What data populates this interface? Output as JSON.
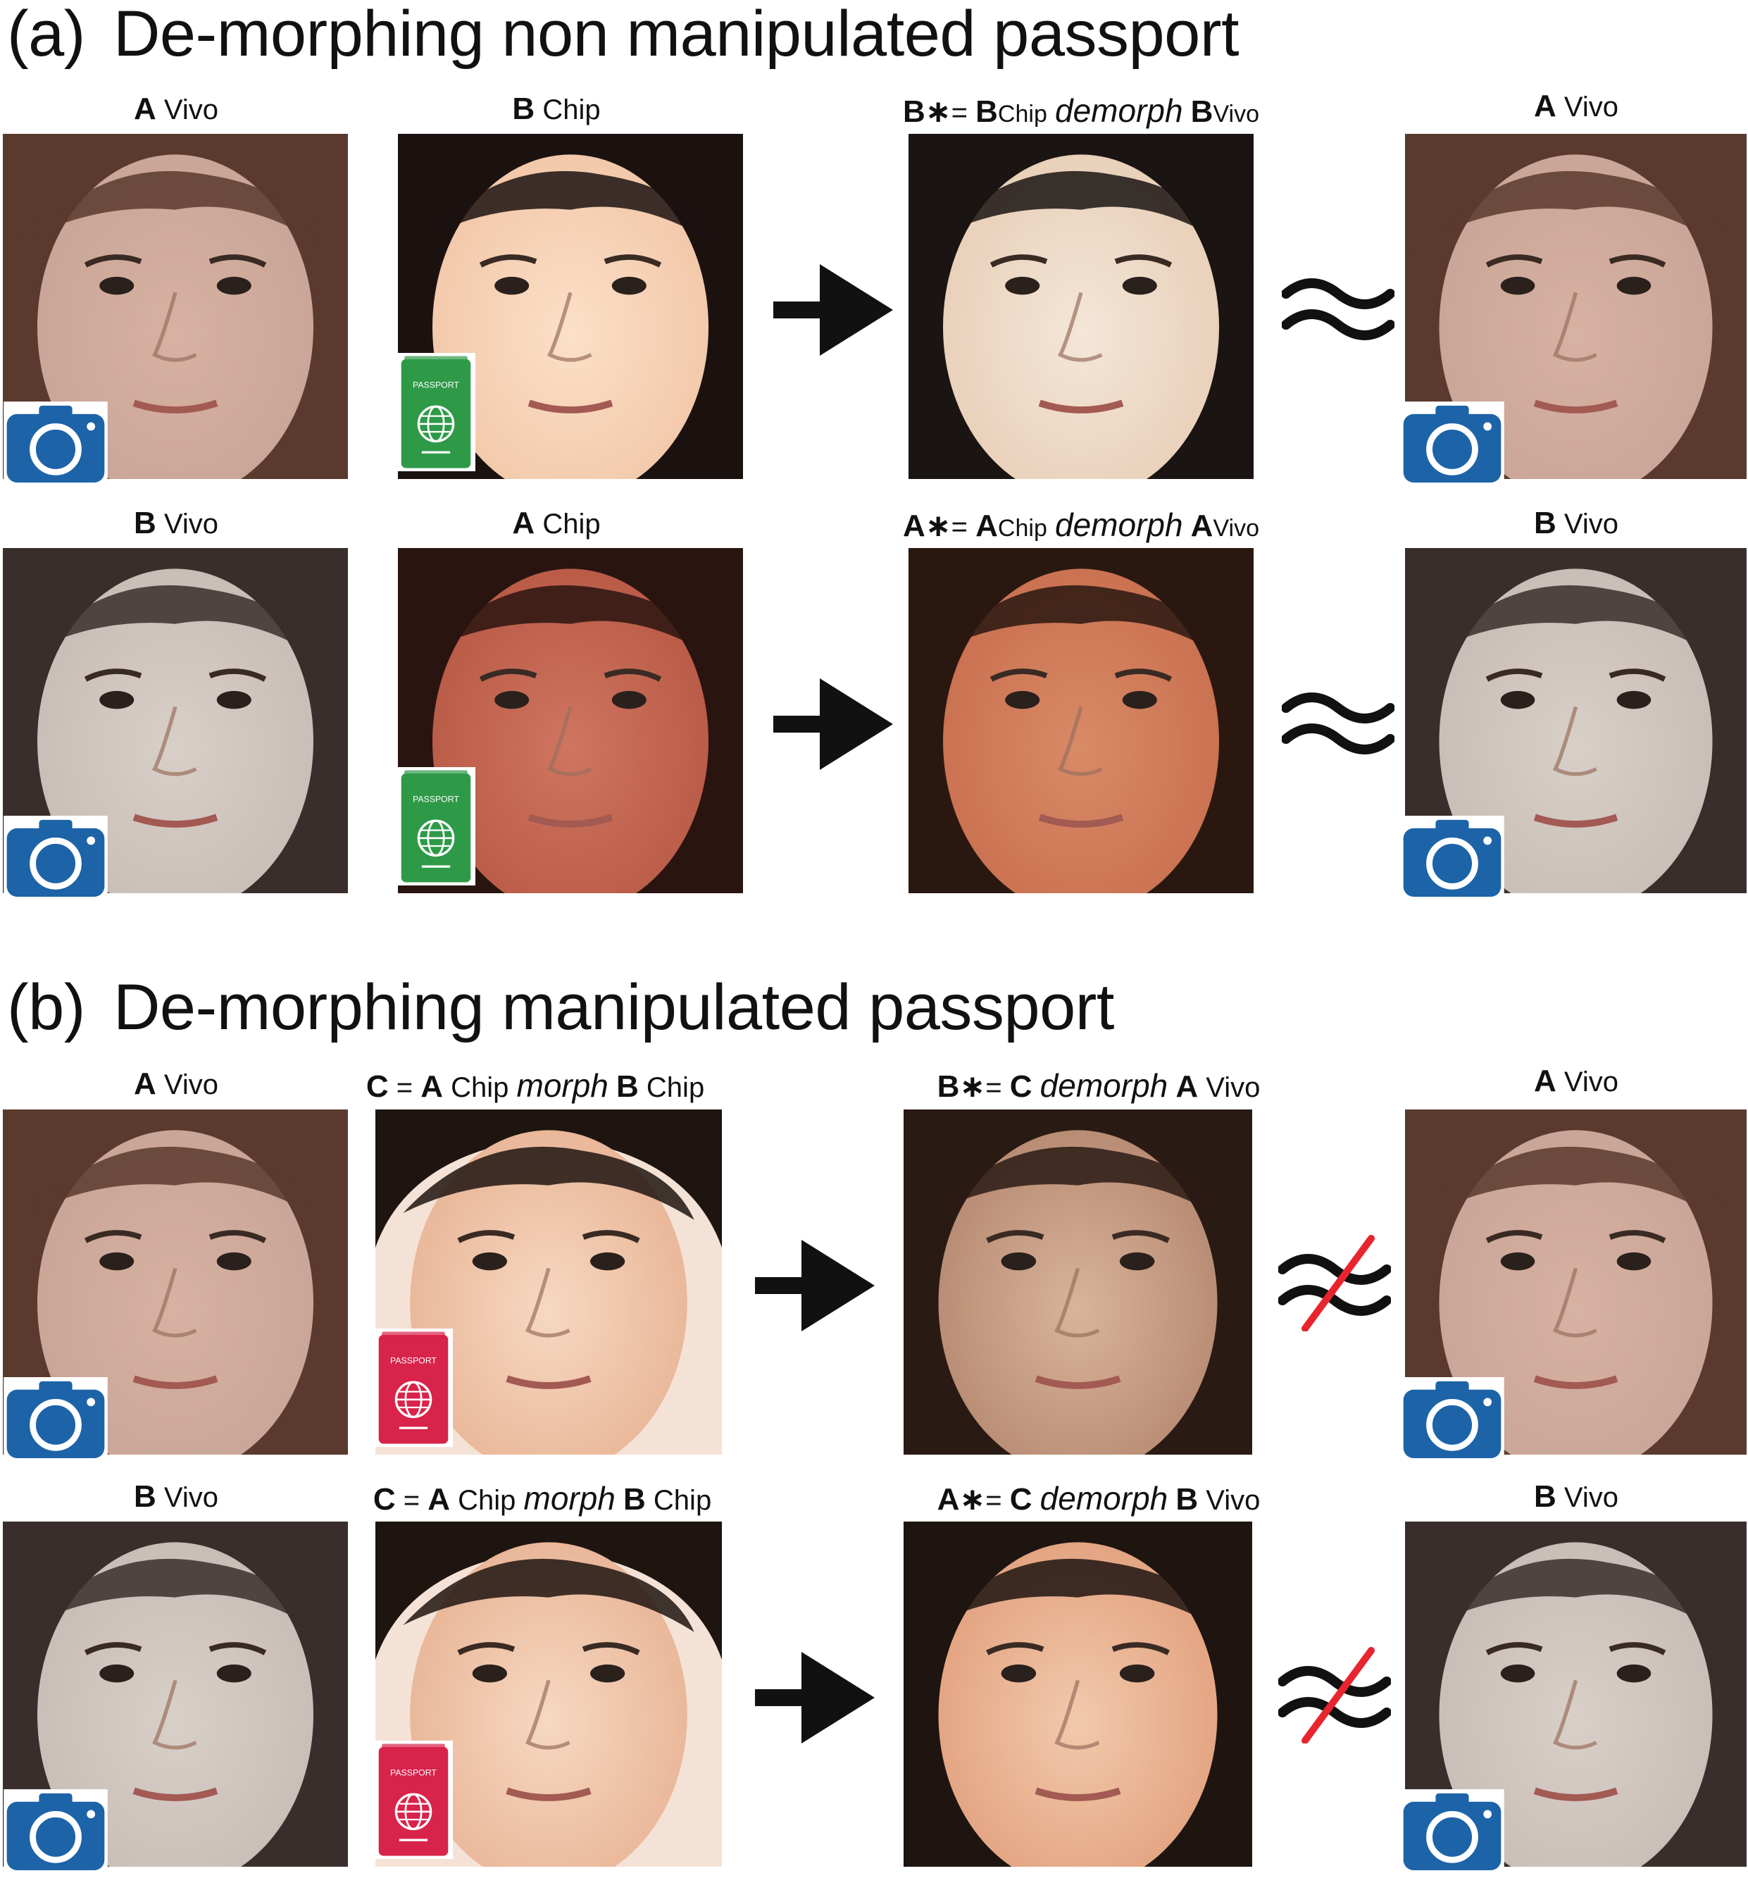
{
  "sections": [
    {
      "tag": "(a)",
      "title": "De-morphing non manipulated passport",
      "rows": [
        {
          "vivo": {
            "person": "A",
            "src": "Vivo"
          },
          "chip": {
            "person": "B",
            "src": "Chip"
          },
          "result": {
            "lhs": "B",
            "eq": "=",
            "a": "B",
            "a_src": "Chip",
            "op": "demorph",
            "b": "B",
            "b_src": "Vivo"
          },
          "relation": "approx",
          "target": {
            "person": "A",
            "src": "Vivo"
          }
        },
        {
          "vivo": {
            "person": "B",
            "src": "Vivo"
          },
          "chip": {
            "person": "A",
            "src": "Chip"
          },
          "result": {
            "lhs": "A",
            "eq": "=",
            "a": "A",
            "a_src": "Chip",
            "op": "demorph",
            "b": "A",
            "b_src": "Vivo"
          },
          "relation": "approx",
          "target": {
            "person": "B",
            "src": "Vivo"
          }
        }
      ]
    },
    {
      "tag": "(b)",
      "title": "De-morphing manipulated passport",
      "rows": [
        {
          "vivo": {
            "person": "A",
            "src": "Vivo"
          },
          "chip": {
            "c": "C",
            "eq": "=",
            "a": "A",
            "a_src": "Chip",
            "op": "morph",
            "b": "B",
            "b_src": "Chip"
          },
          "result": {
            "lhs": "B",
            "eq": "=",
            "c": "C",
            "op": "demorph",
            "b": "A",
            "b_src": "Vivo"
          },
          "relation": "not-approx",
          "target": {
            "person": "A",
            "src": "Vivo"
          }
        },
        {
          "vivo": {
            "person": "B",
            "src": "Vivo"
          },
          "chip": {
            "c": "C",
            "eq": "=",
            "a": "A",
            "a_src": "Chip",
            "op": "morph",
            "b": "B",
            "b_src": "Chip"
          },
          "result": {
            "lhs": "A",
            "eq": "=",
            "c": "C",
            "op": "demorph",
            "b": "B",
            "b_src": "Vivo"
          },
          "relation": "not-approx",
          "target": {
            "person": "B",
            "src": "Vivo"
          }
        }
      ]
    }
  ],
  "badges": {
    "passport_text": "PASSPORT",
    "passport_genuine_color": "#2e9a48",
    "passport_morphed_color": "#d8234a",
    "camera_color": "#1d63a8"
  },
  "icons": {
    "camera": "camera-icon",
    "passport": "passport-icon",
    "arrow": "arrow-right-icon",
    "approx": "approx-icon",
    "not_approx": "not-approx-icon"
  },
  "colors": {
    "strike": "#e8242f",
    "ink": "#111111"
  }
}
